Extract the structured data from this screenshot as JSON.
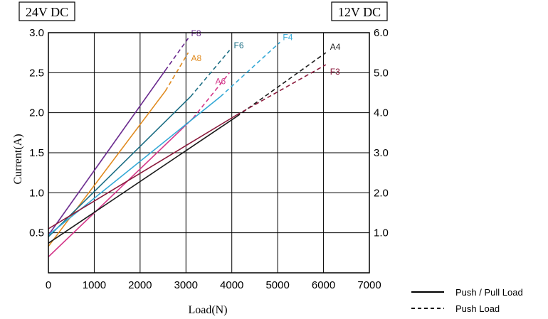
{
  "chart_data": {
    "type": "line",
    "title": "",
    "xlabel": "Load(N)",
    "ylabel": "Current(A)",
    "left_axis_box": "24V DC",
    "right_axis_box": "12V DC",
    "xlim": [
      0,
      7000
    ],
    "ylim": [
      0,
      3.0
    ],
    "y2lim": [
      0,
      6.0
    ],
    "x_ticks": [
      "0",
      "1000",
      "2000",
      "3000",
      "4000",
      "5000",
      "6000",
      "7000"
    ],
    "x_tick_values": [
      0,
      1000,
      2000,
      3000,
      4000,
      5000,
      6000,
      7000
    ],
    "y_ticks": [
      "0.5",
      "1.0",
      "1.5",
      "2.0",
      "2.5",
      "3.0"
    ],
    "y_tick_values": [
      0.5,
      1.0,
      1.5,
      2.0,
      2.5,
      3.0
    ],
    "y2_ticks": [
      "1.0",
      "2.0",
      "3.0",
      "4.0",
      "5.0",
      "6.0"
    ],
    "y2_tick_values": [
      1.0,
      2.0,
      3.0,
      4.0,
      5.0,
      6.0
    ],
    "grid": true,
    "legend_position": "bottom-right",
    "legend": [
      {
        "label": "Push / Pull Load",
        "style": "solid"
      },
      {
        "label": "Push Load",
        "style": "dashed"
      }
    ],
    "series": [
      {
        "name": "F8",
        "color": "#6a2a8e",
        "solid": [
          [
            0,
            0.47
          ],
          [
            2550,
            2.53
          ]
        ],
        "dashed": [
          [
            2550,
            2.53
          ],
          [
            3050,
            2.93
          ]
        ]
      },
      {
        "name": "A8",
        "color": "#e08a1e",
        "solid": [
          [
            0,
            0.33
          ],
          [
            2550,
            2.27
          ]
        ],
        "dashed": [
          [
            2550,
            2.27
          ],
          [
            3050,
            2.75
          ]
        ]
      },
      {
        "name": "F6",
        "color": "#1e6f85",
        "solid": [
          [
            0,
            0.45
          ],
          [
            3100,
            2.2
          ]
        ],
        "dashed": [
          [
            3100,
            2.2
          ],
          [
            3950,
            2.78
          ]
        ]
      },
      {
        "name": "A6",
        "color": "#d4388a",
        "solid": [
          [
            0,
            0.2
          ],
          [
            3150,
            1.93
          ]
        ],
        "dashed": [
          [
            3150,
            1.93
          ],
          [
            3950,
            2.5
          ]
        ]
      },
      {
        "name": "F4",
        "color": "#35a9d6",
        "solid": [
          [
            0,
            0.47
          ],
          [
            3750,
            2.2
          ]
        ],
        "dashed": [
          [
            3750,
            2.2
          ],
          [
            5050,
            2.88
          ]
        ]
      },
      {
        "name": "A4",
        "color": "#1c1c1c",
        "solid": [
          [
            0,
            0.37
          ],
          [
            4100,
            1.95
          ]
        ],
        "dashed": [
          [
            4100,
            1.95
          ],
          [
            6050,
            2.75
          ]
        ]
      },
      {
        "name": "F3",
        "color": "#8b1a3c",
        "solid": [
          [
            0,
            0.55
          ],
          [
            4100,
            1.97
          ]
        ],
        "dashed": [
          [
            4100,
            1.97
          ],
          [
            6050,
            2.6
          ]
        ]
      }
    ]
  }
}
